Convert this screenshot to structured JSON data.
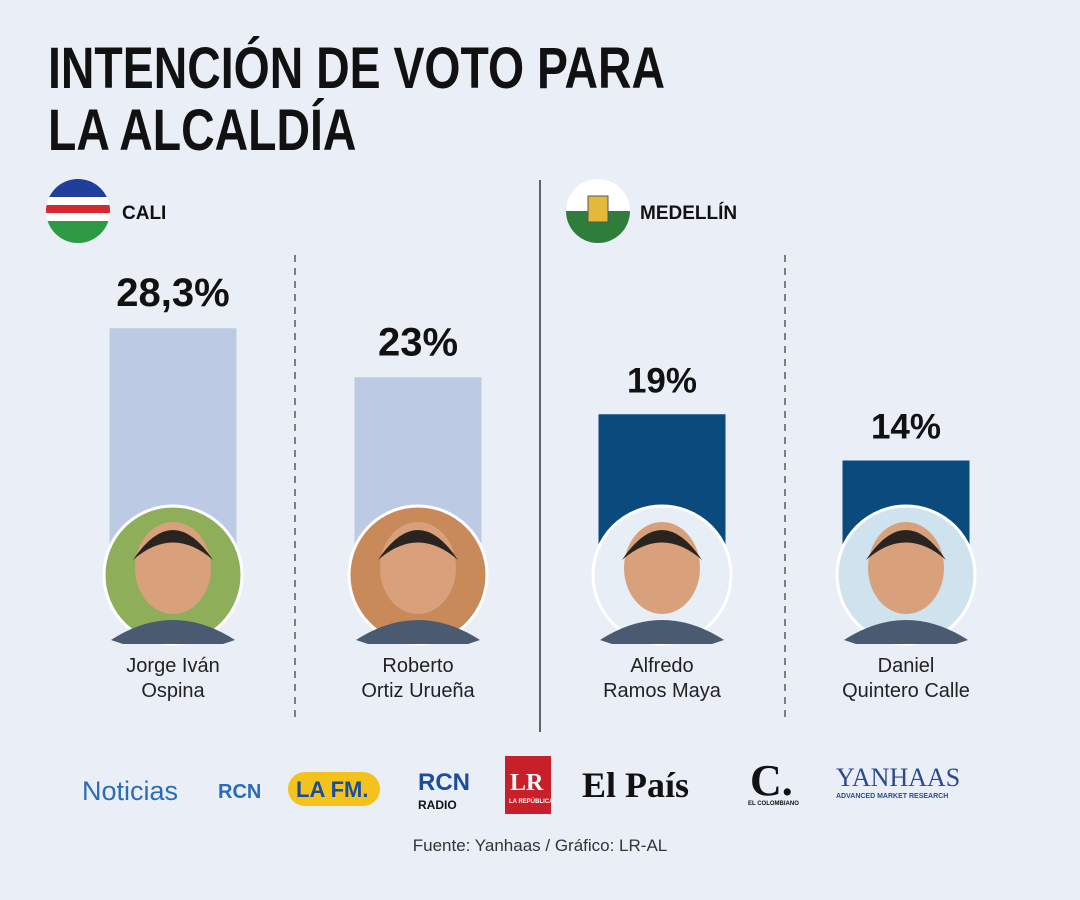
{
  "chart_data": {
    "type": "bar",
    "title": "INTENCIÓN DE VOTO PARA\nLA ALCALDÍA",
    "categories": [
      "Jorge Iván\nOspina",
      "Roberto\nOrtiz Urueña",
      "Alfredo\nRamos Maya",
      "Daniel\nQuintero Calle"
    ],
    "series": [
      {
        "name": "CALI",
        "color": "#bccbe3",
        "values": [
          28.3,
          23,
          null,
          null
        ],
        "value_labels": [
          "28,3%",
          "23%",
          null,
          null
        ]
      },
      {
        "name": "MEDELLÍN",
        "color": "#0b4a7d",
        "values": [
          null,
          null,
          19,
          14
        ],
        "value_labels": [
          null,
          null,
          "19%",
          "14%"
        ]
      }
    ],
    "source": "Fuente: Yanhaas / Gráfico: LR-AL"
  },
  "logos": [
    "Noticias",
    "RCN",
    "LA FM.",
    "RCN",
    "RADIO",
    "LR",
    "LA REPÚBLICA",
    "El País",
    "C.",
    "EL COLOMBIANO",
    "YANHAAS",
    "ADVANCED MARKET RESEARCH"
  ]
}
